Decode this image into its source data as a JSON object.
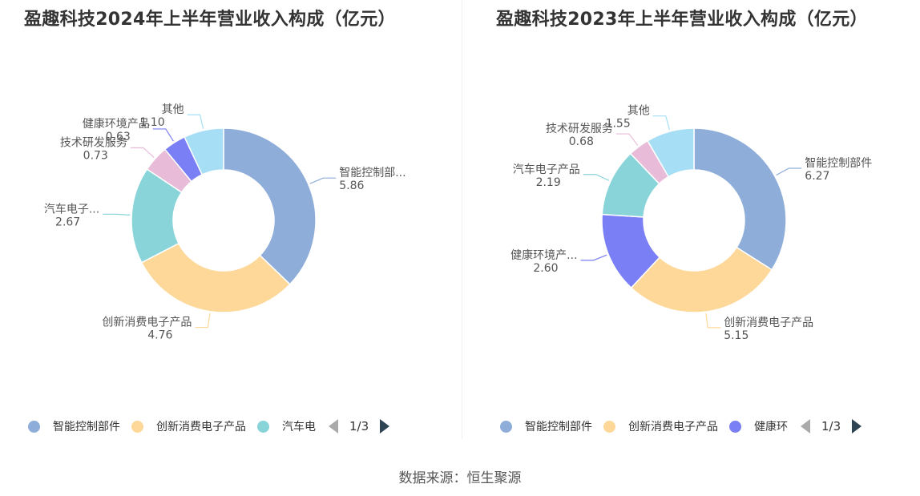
{
  "colors": [
    "#8fadd9",
    "#fdd898",
    "#88d4d9",
    "#7b7ff5",
    "#e8bcd9",
    "#a6def5"
  ],
  "source": "数据来源：恒生聚源",
  "chart_data": [
    {
      "type": "pie",
      "title": "盈趣科技2024年上半年营业收入构成（亿元）",
      "slices": [
        {
          "name": "智能控制部件",
          "label": "智能控制部...",
          "value": 5.86,
          "value_text": "5.86",
          "color": "#8fadd9"
        },
        {
          "name": "创新消费电子产品",
          "label": "创新消费电子产品",
          "value": 4.76,
          "value_text": "4.76",
          "color": "#fdd898"
        },
        {
          "name": "汽车电子产品",
          "label": "汽车电子...",
          "value": 2.67,
          "value_text": "2.67",
          "color": "#88d4d9"
        },
        {
          "name": "技术研发服务",
          "label": "技术研发服务",
          "value": 0.73,
          "value_text": "0.73",
          "color": "#e8bcd9"
        },
        {
          "name": "健康环境产品",
          "label": "健康环境产品",
          "value": 0.63,
          "value_text": "0.63",
          "color": "#7b7ff5"
        },
        {
          "name": "其他",
          "label": "其他",
          "value": 1.1,
          "value_text": "1.10",
          "color": "#a6def5"
        }
      ],
      "legend": {
        "placement": "bottom",
        "items": [
          {
            "label": "智能控制部件",
            "color": "#8fadd9"
          },
          {
            "label": "创新消费电子产品",
            "color": "#fdd898"
          },
          {
            "label": "汽车电",
            "color": "#88d4d9"
          }
        ],
        "page": "1/3"
      }
    },
    {
      "type": "pie",
      "title": "盈趣科技2023年上半年营业收入构成（亿元）",
      "slices": [
        {
          "name": "智能控制部件",
          "label": "智能控制部件",
          "value": 6.27,
          "value_text": "6.27",
          "color": "#8fadd9"
        },
        {
          "name": "创新消费电子产品",
          "label": "创新消费电子产品",
          "value": 5.15,
          "value_text": "5.15",
          "color": "#fdd898"
        },
        {
          "name": "健康环境产品",
          "label": "健康环境产...",
          "value": 2.6,
          "value_text": "2.60",
          "color": "#7b7ff5"
        },
        {
          "name": "汽车电子产品",
          "label": "汽车电子产品",
          "value": 2.19,
          "value_text": "2.19",
          "color": "#88d4d9"
        },
        {
          "name": "技术研发服务",
          "label": "技术研发服务",
          "value": 0.68,
          "value_text": "0.68",
          "color": "#e8bcd9"
        },
        {
          "name": "其他",
          "label": "其他",
          "value": 1.55,
          "value_text": "1.55",
          "color": "#a6def5"
        }
      ],
      "legend": {
        "placement": "bottom",
        "items": [
          {
            "label": "智能控制部件",
            "color": "#8fadd9"
          },
          {
            "label": "创新消费电子产品",
            "color": "#fdd898"
          },
          {
            "label": "健康环",
            "color": "#7b7ff5"
          }
        ],
        "page": "1/3"
      }
    }
  ]
}
